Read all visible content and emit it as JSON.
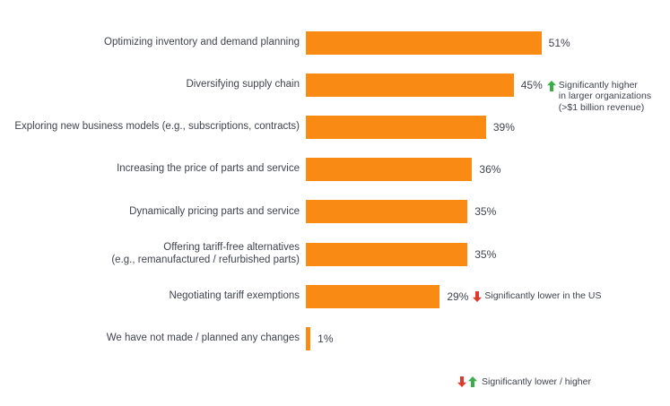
{
  "chart_data": {
    "type": "bar",
    "orientation": "horizontal",
    "title": "",
    "xlabel": "",
    "ylabel": "",
    "xlim": [
      0,
      55
    ],
    "grid": false,
    "legend_position": "bottom-right",
    "bar_color": "#F98A13",
    "text_color": "#3F434C",
    "higher_arrow_color": "#3BAE49",
    "lower_arrow_color": "#DE3B2E",
    "categories": [
      "Optimizing inventory and demand planning",
      "Diversifying supply chain",
      "Exploring new business models (e.g., subscriptions, contracts)",
      "Increasing the price of parts and service",
      "Dynamically pricing parts and service",
      "Offering tariff-free alternatives (e.g., remanufactured / refurbished parts)",
      "Negotiating tariff exemptions",
      "We have not made / planned any changes"
    ],
    "values": [
      51,
      45,
      39,
      36,
      35,
      35,
      29,
      1
    ],
    "rows": [
      {
        "label": "Optimizing inventory and demand planning",
        "value": 51,
        "value_label": "51%"
      },
      {
        "label": "Diversifying supply chain",
        "value": 45,
        "value_label": "45%",
        "annotation": {
          "direction": "up",
          "text": "Significantly higher\nin larger organizations\n(>$1 billion revenue)"
        }
      },
      {
        "label": "Exploring new business models (e.g., subscriptions, contracts)",
        "value": 39,
        "value_label": "39%"
      },
      {
        "label": "Increasing the price of parts and service",
        "value": 36,
        "value_label": "36%"
      },
      {
        "label": "Dynamically pricing parts and service",
        "value": 35,
        "value_label": "35%"
      },
      {
        "label": "Offering tariff-free alternatives\n(e.g., remanufactured / refurbished parts)",
        "value": 35,
        "value_label": "35%"
      },
      {
        "label": "Negotiating tariff exemptions",
        "value": 29,
        "value_label": "29%",
        "annotation": {
          "direction": "down",
          "text": "Significantly lower in the US"
        }
      },
      {
        "label": "We have not made / planned any changes",
        "value": 1,
        "value_label": "1%"
      }
    ],
    "legend": {
      "text": "Significantly lower / higher",
      "icons": [
        "down-arrow",
        "up-arrow"
      ]
    }
  }
}
